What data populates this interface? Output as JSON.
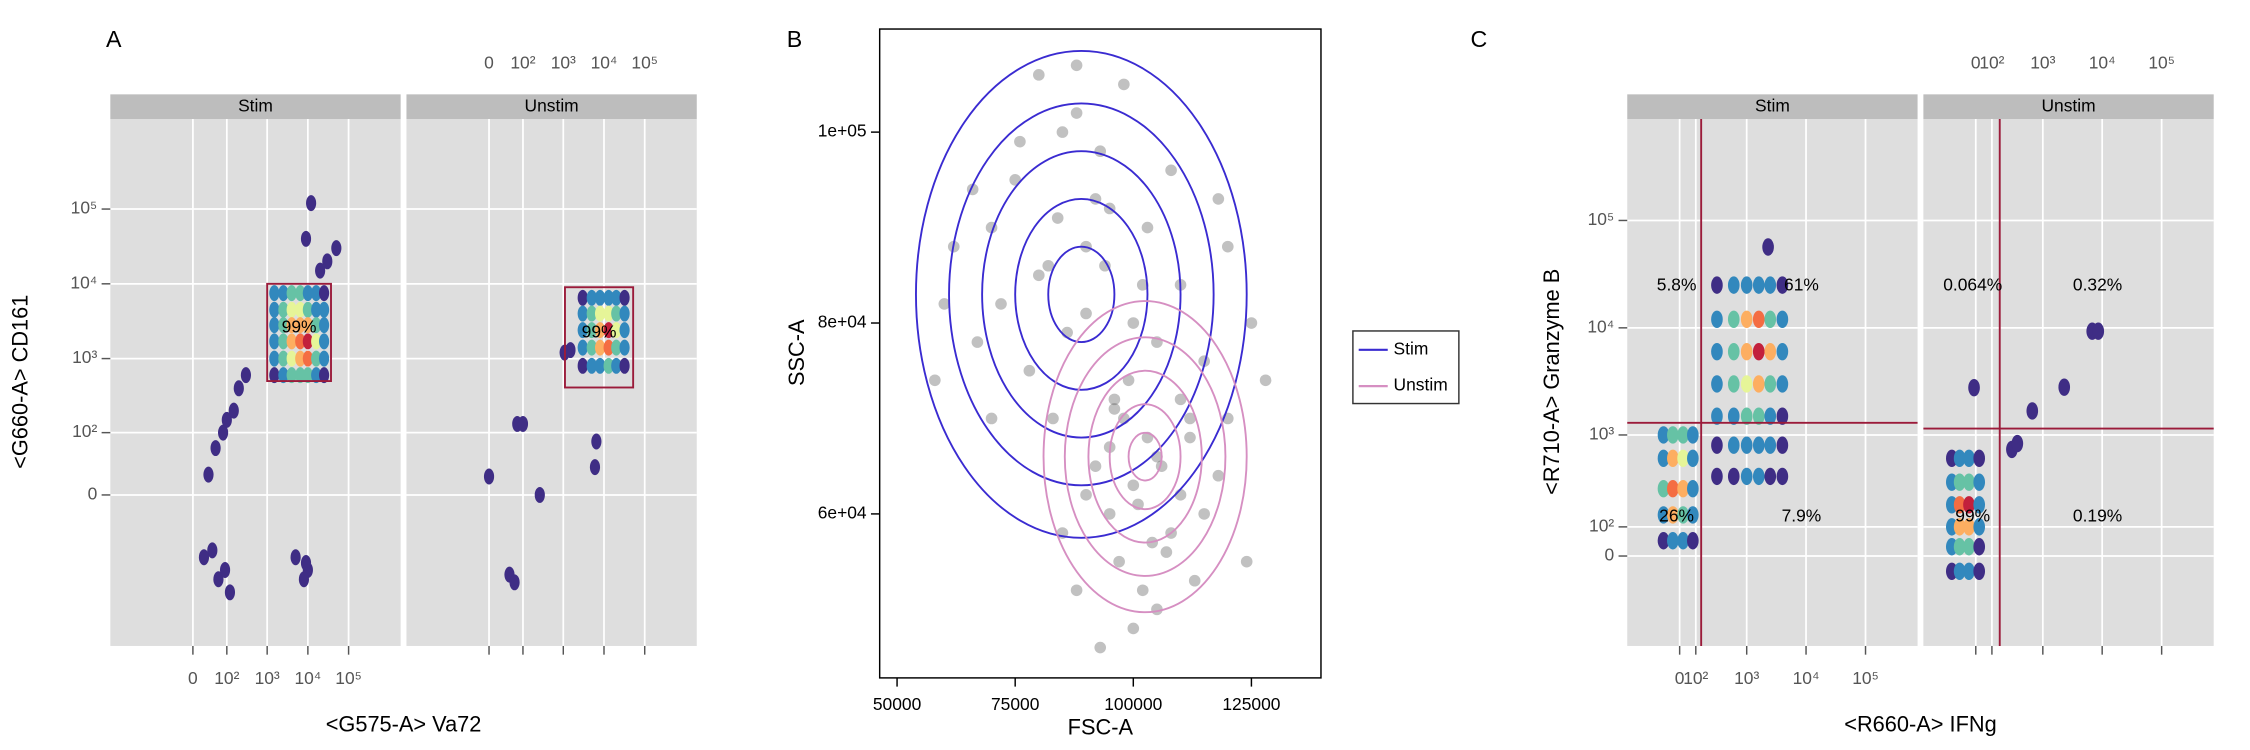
{
  "chart_data": [
    {
      "type": "hexbin",
      "panel": "A",
      "x_label": "<G575-A> Va72",
      "y_label": "<G660-A> CD161",
      "scale": "asinh",
      "xlim": [
        -1600,
        1900000
      ],
      "ylim": [
        -1570,
        1600000
      ],
      "xticks": [
        0,
        {
          "value": 100,
          "label": "10²"
        },
        {
          "value": 1000,
          "label": "10³"
        },
        {
          "value": 10000,
          "label": "10⁴"
        },
        {
          "value": 100000,
          "label": "10⁵"
        }
      ],
      "yticks": [
        0,
        {
          "value": 100,
          "label": "10²"
        },
        {
          "value": 1000,
          "label": "10³"
        },
        {
          "value": 10000,
          "label": "10⁴"
        },
        {
          "value": 100000,
          "label": "10⁵"
        }
      ],
      "grid": true,
      "palette": [
        "#3f2d85",
        "#3288bd",
        "#66c2a5",
        "#e6f598",
        "#fdae61",
        "#f46d43",
        "#c2203c"
      ],
      "facets": [
        {
          "name": "Stim",
          "x": [
            1500,
            2500,
            4000,
            6500,
            10000,
            16000,
            25000,
            1500,
            2500,
            4000,
            6500,
            10000,
            16000,
            25000,
            1500,
            2500,
            4000,
            6500,
            10000,
            16000,
            25000,
            1500,
            2500,
            4000,
            6500,
            10000,
            16000,
            25000,
            1500,
            2500,
            4000,
            6500,
            10000,
            16000,
            25000,
            1500,
            2500,
            4000,
            6500,
            10000,
            16000,
            25000,
            30,
            50,
            80,
            100,
            150,
            200,
            300,
            40,
            60,
            90,
            120,
            20,
            12000,
            9000,
            30000,
            20000,
            50000,
            5000,
            10000,
            9000,
            8000
          ],
          "y": [
            7500,
            7500,
            7500,
            7500,
            7500,
            7500,
            7500,
            4500,
            4500,
            4500,
            4500,
            4500,
            4500,
            4500,
            2800,
            2800,
            2800,
            2800,
            2800,
            2800,
            2800,
            1700,
            1700,
            1700,
            1700,
            1700,
            1700,
            1700,
            1000,
            1000,
            1000,
            1000,
            1000,
            1000,
            1000,
            600,
            600,
            600,
            600,
            600,
            600,
            600,
            20,
            60,
            100,
            150,
            200,
            400,
            600,
            -80,
            -200,
            -150,
            -300,
            -100,
            120000,
            40000,
            20000,
            15000,
            30000,
            -100,
            -150,
            -120,
            -200
          ],
          "level": [
            0.1,
            0.2,
            0.3,
            0.3,
            0.2,
            0.1,
            0,
            0.2,
            0.3,
            0.5,
            0.5,
            0.4,
            0.2,
            0.1,
            0.2,
            0.4,
            0.6,
            0.7,
            0.6,
            0.3,
            0.1,
            0.2,
            0.4,
            0.6,
            0.8,
            1,
            0.5,
            0.2,
            0.1,
            0.3,
            0.5,
            0.7,
            0.8,
            0.4,
            0.1,
            0,
            0.2,
            0.3,
            0.4,
            0.3,
            0.2,
            0,
            0,
            0,
            0,
            0,
            0,
            0,
            0,
            0,
            0,
            0,
            0,
            0,
            0,
            0,
            0,
            0,
            0,
            0,
            0,
            0,
            0
          ],
          "gate": {
            "xlim": [
              1000,
              37000
            ],
            "ylim": [
              500,
              10000
            ],
            "value": 99,
            "value_label": "99%"
          }
        },
        {
          "name": "Unstim",
          "x": [
            3000,
            5000,
            8000,
            13000,
            20000,
            32000,
            3000,
            5000,
            8000,
            13000,
            20000,
            32000,
            3000,
            5000,
            8000,
            13000,
            20000,
            32000,
            3000,
            5000,
            8000,
            13000,
            20000,
            32000,
            3000,
            5000,
            8000,
            13000,
            20000,
            32000,
            0,
            71,
            100,
            264,
            43,
            60,
            1080,
            6000,
            6500,
            1500
          ],
          "y": [
            6500,
            6500,
            6500,
            6500,
            6500,
            6500,
            4000,
            4000,
            4000,
            4000,
            4000,
            4000,
            2400,
            2400,
            2400,
            2400,
            2400,
            2400,
            1400,
            1400,
            1400,
            1400,
            1400,
            1400,
            800,
            800,
            800,
            800,
            800,
            800,
            18,
            132,
            132,
            0,
            -173,
            -220,
            1200,
            29,
            75,
            1300
          ],
          "level": [
            0,
            0.1,
            0.2,
            0.2,
            0.1,
            0,
            0.1,
            0.3,
            0.5,
            0.5,
            0.3,
            0.1,
            0.2,
            0.4,
            0.7,
            1,
            0.5,
            0.2,
            0.1,
            0.3,
            0.6,
            0.8,
            0.4,
            0.1,
            0,
            0.1,
            0.2,
            0.3,
            0.2,
            0,
            0,
            0,
            0,
            0,
            0,
            0,
            0,
            0,
            0,
            0
          ],
          "gate": {
            "xlim": [
              1100,
              52000
            ],
            "ylim": [
              410,
              9000
            ],
            "value": 99,
            "value_label": "99%"
          }
        }
      ]
    },
    {
      "type": "scatter",
      "panel": "B",
      "x_label": "FSC-A",
      "y_label": "SSC-A",
      "xlim": [
        46320,
        139720
      ],
      "ylim": [
        42820,
        110800
      ],
      "xticks": [
        50000,
        75000,
        100000,
        125000
      ],
      "yticks": [
        {
          "value": 60000,
          "label": "6e+04"
        },
        {
          "value": 80000,
          "label": "8e+04"
        },
        {
          "value": 100000,
          "label": "1e+05"
        }
      ],
      "points": {
        "color": "#4d4d4d",
        "x": [
          70000,
          75000,
          80000,
          85000,
          90000,
          95000,
          100000,
          105000,
          110000,
          78000,
          83000,
          88000,
          93000,
          98000,
          103000,
          72000,
          67000,
          62000,
          58000,
          115000,
          120000,
          125000,
          108000,
          96000,
          86000,
          76000,
          66000,
          82000,
          92000,
          102000,
          112000,
          70000,
          60000,
          118000,
          128000,
          88000,
          94000,
          80000,
          84000,
          90000,
          95000,
          100000,
          105000,
          110000,
          98000,
          103000,
          108000,
          92000,
          97000,
          102000,
          107000,
          112000,
          115000,
          100000,
          105000,
          90000,
          95000,
          110000,
          118000,
          85000,
          99000,
          104000,
          120000,
          93000,
          88000,
          113000,
          101000,
          96000,
          106000,
          124000
        ],
        "y": [
          90000,
          95000,
          85000,
          100000,
          88000,
          92000,
          80000,
          78000,
          84000,
          75000,
          70000,
          102000,
          98000,
          105000,
          90000,
          82000,
          78000,
          88000,
          74000,
          76000,
          88000,
          80000,
          96000,
          72000,
          79000,
          99000,
          94000,
          86000,
          93000,
          84000,
          70000,
          70000,
          82000,
          93000,
          74000,
          107000,
          86000,
          106000,
          91000,
          81000,
          60000,
          63000,
          66000,
          62000,
          70000,
          68000,
          58000,
          65000,
          55000,
          52000,
          56000,
          68000,
          60000,
          48000,
          50000,
          62000,
          67000,
          72000,
          64000,
          58000,
          74000,
          57000,
          70000,
          46000,
          52000,
          53000,
          61000,
          71000,
          65000,
          55000
        ]
      },
      "contours": [
        {
          "name": "Stim",
          "color": "#3a2bd1",
          "cx": 89000,
          "cy": 83000,
          "rx": [
            35000,
            28000,
            21000,
            14000,
            7000
          ],
          "ry": [
            25500,
            20000,
            15000,
            10000,
            5000
          ]
        },
        {
          "name": "Unstim",
          "color": "#d68fc2",
          "cx": 102500,
          "cy": 66000,
          "rx": [
            21500,
            17000,
            12000,
            7500,
            3500
          ],
          "ry": [
            16300,
            12500,
            9000,
            5500,
            2500
          ]
        }
      ]
    },
    {
      "type": "hexbin",
      "panel": "C",
      "x_label": "<R660-A> IFNg",
      "y_label": "<R710-A> Granzyme B",
      "scale": "asinh",
      "xlim": [
        -560,
        750000
      ],
      "ylim": [
        -505,
        880000
      ],
      "xticks": [
        0,
        {
          "value": 100,
          "label": "10²"
        },
        {
          "value": 1000,
          "label": "10³"
        },
        {
          "value": 10000,
          "label": "10⁴"
        },
        {
          "value": 100000,
          "label": "10⁵"
        }
      ],
      "yticks": [
        0,
        {
          "value": 100,
          "label": "10²"
        },
        {
          "value": 1000,
          "label": "10³"
        },
        {
          "value": 10000,
          "label": "10⁴"
        },
        {
          "value": 100000,
          "label": "10⁵"
        }
      ],
      "grid": true,
      "palette": [
        "#3f2d85",
        "#3288bd",
        "#66c2a5",
        "#e6f598",
        "#fdae61",
        "#f46d43",
        "#c2203c"
      ],
      "facets": [
        {
          "name": "Stim",
          "x": [
            300,
            600,
            1000,
            1600,
            2500,
            4000,
            300,
            600,
            1000,
            1600,
            2500,
            4000,
            300,
            600,
            1000,
            1600,
            2500,
            4000,
            300,
            600,
            1000,
            1600,
            2500,
            4000,
            300,
            600,
            1000,
            1600,
            2500,
            4000,
            300,
            600,
            1000,
            1600,
            2500,
            4000,
            300,
            600,
            1000,
            1600,
            2500,
            4000,
            -100,
            -40,
            20,
            80,
            -100,
            -40,
            20,
            80,
            -100,
            -40,
            20,
            80,
            -100,
            -40,
            20,
            80,
            -100,
            -40,
            20,
            80,
            2300
          ],
          "y": [
            25000,
            25000,
            25000,
            25000,
            25000,
            25000,
            12000,
            12000,
            12000,
            12000,
            12000,
            12000,
            6000,
            6000,
            6000,
            6000,
            6000,
            6000,
            3000,
            3000,
            3000,
            3000,
            3000,
            3000,
            1500,
            1500,
            1500,
            1500,
            1500,
            1500,
            800,
            800,
            800,
            800,
            800,
            800,
            400,
            400,
            400,
            400,
            400,
            400,
            1000,
            1000,
            1000,
            1000,
            600,
            600,
            600,
            600,
            300,
            300,
            300,
            300,
            150,
            150,
            150,
            150,
            50,
            50,
            50,
            50,
            56600
          ],
          "level": [
            0,
            0.1,
            0.2,
            0.2,
            0.1,
            0,
            0.1,
            0.3,
            0.6,
            0.8,
            0.4,
            0.1,
            0.1,
            0.4,
            0.7,
            1,
            0.6,
            0.2,
            0.1,
            0.3,
            0.5,
            0.6,
            0.4,
            0.1,
            0.1,
            0.2,
            0.3,
            0.3,
            0.2,
            0,
            0,
            0.1,
            0.2,
            0.2,
            0.1,
            0,
            0,
            0,
            0.1,
            0.1,
            0,
            0,
            0.1,
            0.3,
            0.3,
            0.1,
            0.2,
            0.6,
            0.5,
            0.1,
            0.3,
            0.9,
            0.7,
            0.2,
            0.2,
            0.6,
            0.4,
            0.1,
            0,
            0.2,
            0.2,
            0,
            0
          ],
          "quadrant_gate": {
            "x": 140,
            "y": 1300
          },
          "quadrants": {
            "values": [
              5.8,
              61,
              26,
              7.9
            ],
            "value_labels": [
              "5.8%",
              "61%",
              "26%",
              "7.9%"
            ]
          }
        },
        {
          "name": "Unstim",
          "x": [
            -160,
            -100,
            -40,
            20,
            -160,
            -100,
            -40,
            20,
            -160,
            -100,
            -40,
            20,
            -160,
            -100,
            -40,
            20,
            -160,
            -100,
            -40,
            20,
            -160,
            -100,
            -40,
            20,
            -10,
            285,
            360,
            660,
            2300,
            6800,
            8600
          ],
          "y": [
            600,
            600,
            600,
            600,
            350,
            350,
            350,
            350,
            200,
            200,
            200,
            200,
            100,
            100,
            100,
            100,
            30,
            30,
            30,
            30,
            -50,
            -50,
            -50,
            -50,
            2770,
            730,
            830,
            1680,
            2800,
            9300,
            9300
          ],
          "level": [
            0,
            0.1,
            0.1,
            0,
            0.1,
            0.4,
            0.3,
            0.1,
            0.2,
            0.8,
            1,
            0.2,
            0.2,
            0.7,
            0.6,
            0.1,
            0.1,
            0.3,
            0.3,
            0,
            0,
            0.1,
            0.1,
            0,
            0,
            0,
            0,
            0,
            0,
            0,
            0
          ],
          "quadrant_gate": {
            "x": 160,
            "y": 1150
          },
          "quadrants": {
            "values": [
              0.064,
              0.32,
              99,
              0.19
            ],
            "value_labels": [
              "0.064%",
              "0.32%",
              "99%",
              "0.19%"
            ]
          }
        }
      ]
    }
  ]
}
